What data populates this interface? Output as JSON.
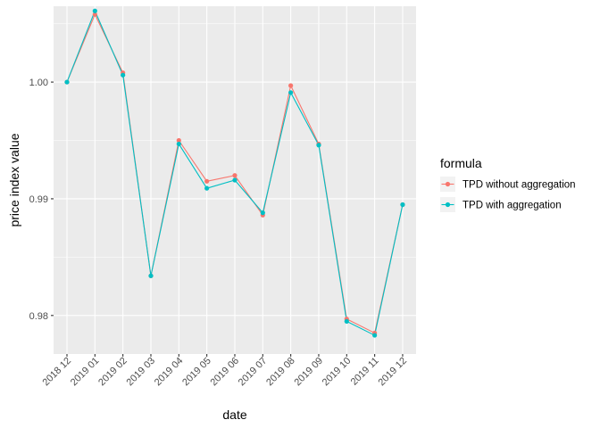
{
  "chart_data": {
    "type": "line",
    "xlabel": "date",
    "ylabel": "price index value",
    "categories": [
      "2018 12",
      "2019 01",
      "2019 02",
      "2019 03",
      "2019 04",
      "2019 05",
      "2019 06",
      "2019 07",
      "2019 08",
      "2019 09",
      "2019 10",
      "2019 11",
      "2019 12"
    ],
    "y_ticks": [
      0.98,
      0.99,
      1.0
    ],
    "y_tick_labels": [
      "0.98",
      "0.99",
      "1.00"
    ],
    "ylim": [
      0.9767,
      1.0065
    ],
    "grid": true,
    "legend_title": "formula",
    "legend_position": "right",
    "series": [
      {
        "name": "TPD without aggregation",
        "color": "#F8766D",
        "values": [
          1.0,
          1.0058,
          1.0008,
          0.9834,
          0.995,
          0.9915,
          0.992,
          0.9886,
          0.9997,
          0.9947,
          0.9797,
          0.9785,
          0.9895
        ]
      },
      {
        "name": "TPD with aggregation",
        "color": "#00BFC4",
        "values": [
          1.0,
          1.0061,
          1.0006,
          0.9834,
          0.9947,
          0.9909,
          0.9916,
          0.9888,
          0.9991,
          0.9946,
          0.9795,
          0.9783,
          0.9895
        ]
      }
    ]
  }
}
